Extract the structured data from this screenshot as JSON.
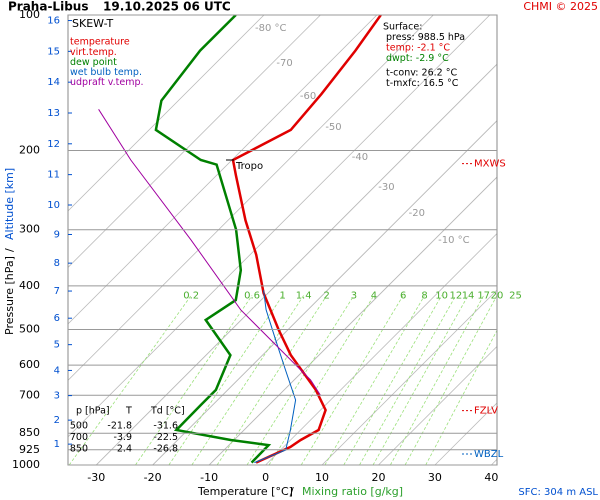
{
  "chart_data": {
    "type": "skewt",
    "station": "Praha-Libus",
    "title": "19.10.2025 06 UTC",
    "copyright": "CHMI © 2025",
    "diagram_label": "SKEW-T",
    "xlabel": "Temperature [°C]",
    "xlabel_separator": "/",
    "xlabel2": "Mixing ratio [g/kg]",
    "ylabel": "Pressure [hPa]",
    "ylabel_separator": "/",
    "ylabel2": "Altitude [km]",
    "footer": "SFC: 304 m ASL",
    "xlim": [
      -35,
      41
    ],
    "xticks": [
      -30,
      -20,
      -10,
      0,
      10,
      20,
      30,
      40
    ],
    "ylim": [
      1000,
      100
    ],
    "log_y": true,
    "yticks": [
      1000,
      925,
      850,
      700,
      600,
      500,
      400,
      300,
      200,
      100
    ],
    "altitude_ticks": [
      1,
      2,
      3,
      4,
      5,
      6,
      7,
      8,
      9,
      10,
      11,
      12,
      13,
      14,
      15,
      16
    ],
    "isotherm_labels": [
      {
        "value": -80,
        "label": "-80 °C"
      },
      {
        "value": -70,
        "label": "-70"
      },
      {
        "value": -60,
        "label": "-60"
      },
      {
        "value": -50,
        "label": "-50"
      },
      {
        "value": -40,
        "label": "-40"
      },
      {
        "value": -30,
        "label": "-30"
      },
      {
        "value": -20,
        "label": "-20"
      },
      {
        "value": -10,
        "label": "-10 °C"
      }
    ],
    "mixing_ratio_ticks": [
      0.2,
      0.6,
      1,
      1.4,
      2,
      3,
      4,
      6,
      8,
      10,
      12,
      14,
      17,
      20,
      25
    ],
    "legend_notes": [
      {
        "text": "temperature",
        "color": "#e00000"
      }
    ],
    "series": [
      {
        "name": "virt.temp.",
        "color": "#e00000",
        "p": [
          988,
          912,
          880,
          836,
          755,
          681,
          570,
          501,
          415,
          341,
          286,
          227,
          210,
          180,
          150,
          120,
          100
        ],
        "t": [
          -2.1,
          1.2,
          1.8,
          3.2,
          0.9,
          -4.4,
          -15,
          -21.6,
          -30.8,
          -38.9,
          -46.9,
          -56.6,
          -59.8,
          -54.9,
          -55.8,
          -57.5,
          -59.3
        ]
      },
      {
        "name": "dew point",
        "color": "#008000",
        "p": [
          988,
          903,
          880,
          836,
          736,
          681,
          570,
          476,
          430,
          369,
          300,
          215,
          210,
          180,
          155,
          120,
          100
        ],
        "t": [
          -2.9,
          -3,
          -10.6,
          -22,
          -22.1,
          -22.1,
          -25.7,
          -36.3,
          -34.5,
          -38.9,
          -46.9,
          -61.9,
          -65.5,
          -78.8,
          -83,
          -85,
          -85
        ]
      },
      {
        "name": "wet bulb temp.",
        "color": "#0060c0",
        "p": [
          988,
          926,
          836,
          717,
          615,
          527,
          452,
          409
        ],
        "t": [
          -2.4,
          0.9,
          -1.8,
          -6.2,
          -13.3,
          -20.4,
          -27.4,
          -31.3
        ]
      },
      {
        "name": "udpraft v.temp.",
        "color": "#a000a0",
        "p": [
          699,
          647,
          555,
          452,
          316,
          210,
          162
        ],
        "t": [
          -2.7,
          -7.1,
          -17.7,
          -31.9,
          -53.1,
          -77.9,
          -92.6
        ]
      }
    ],
    "tropopause": {
      "label": "Tropo",
      "p": 210
    },
    "levels": [
      {
        "label": "MXWS",
        "p": 214,
        "color": "#e00000"
      },
      {
        "label": "FZLV",
        "p": 757,
        "color": "#e00000"
      },
      {
        "label": "WBZL",
        "p": 945,
        "color": "#0060c0"
      }
    ],
    "surface_box": [
      "Surface:",
      "press: 988.5 hPa",
      "temp: -2.1 °C",
      "dwpt: -2.9 °C",
      "t-conv: 26.2 °C",
      "t-mxfc: 16.5 °C"
    ],
    "table": {
      "header": [
        "p [hPa]",
        "T",
        "Td [°C]"
      ],
      "rows": [
        [
          500,
          -21.8,
          -31.6
        ],
        [
          700,
          -3.9,
          -22.5
        ],
        [
          850,
          2.4,
          -26.8
        ]
      ]
    }
  }
}
